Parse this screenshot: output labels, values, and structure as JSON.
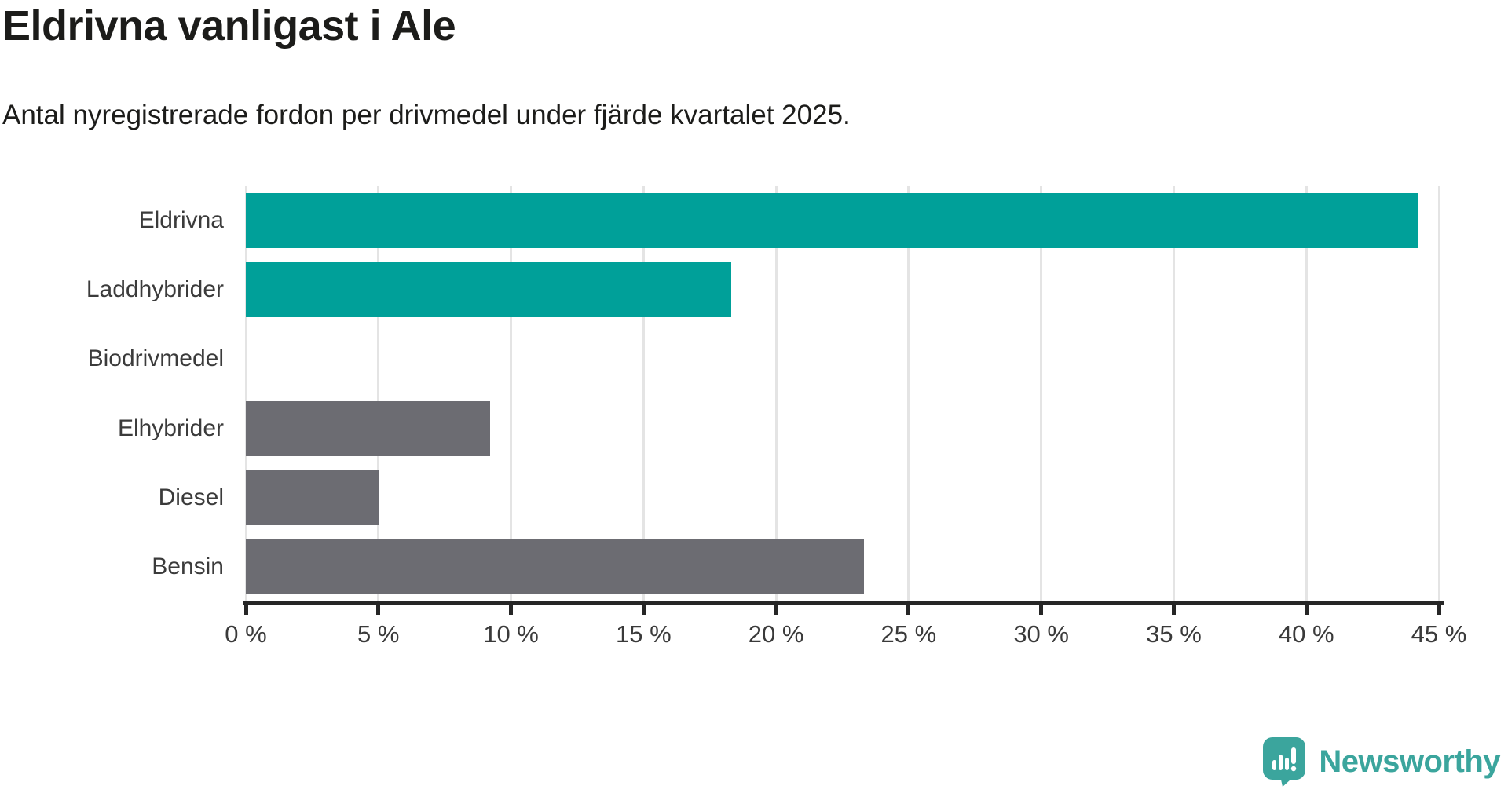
{
  "title": "Eldrivna vanligast i Ale",
  "subtitle": "Antal nyregistrerade fordon per drivmedel under fjärde kvartalet 2025.",
  "brand": {
    "name": "Newsworthy",
    "color": "#3ba59d",
    "icon": "speech-bubble-bar-chart-icon"
  },
  "colors": {
    "highlight": "#00a099",
    "default": "#6c6c72",
    "grid": "#e4e4e4",
    "axis": "#262626",
    "title_text": "#1c1c1a",
    "label_text": "#3b3b3b"
  },
  "chart_data": {
    "type": "bar",
    "orientation": "horizontal",
    "title": "Eldrivna vanligast i Ale",
    "subtitle": "Antal nyregistrerade fordon per drivmedel under fjärde kvartalet 2025.",
    "categories": [
      "Eldrivna",
      "Laddhybrider",
      "Biodrivmedel",
      "Elhybrider",
      "Diesel",
      "Bensin"
    ],
    "values": [
      44.2,
      18.3,
      0,
      9.2,
      5.0,
      23.3
    ],
    "unit": "%",
    "bar_colors": [
      "highlight",
      "highlight",
      "none",
      "default",
      "default",
      "default"
    ],
    "xlim": [
      0,
      45
    ],
    "xtick_step": 5,
    "xticks": [
      0,
      5,
      10,
      15,
      20,
      25,
      30,
      35,
      40,
      45
    ],
    "xticklabels": [
      "0 %",
      "5 %",
      "10 %",
      "15 %",
      "20 %",
      "25 %",
      "30 %",
      "35 %",
      "40 %",
      "45 %"
    ],
    "grid": true,
    "legend": false,
    "xlabel": "",
    "ylabel": ""
  }
}
